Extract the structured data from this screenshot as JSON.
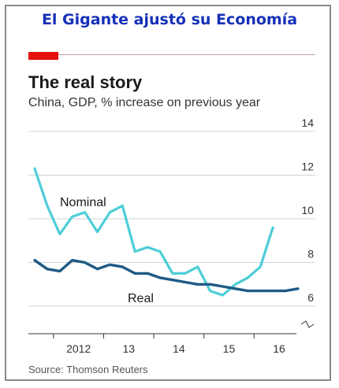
{
  "header": {
    "title": "El Gigante ajustó su Economía"
  },
  "chart_data": {
    "type": "line",
    "title": "The real story",
    "subtitle": "China, GDP, % increase on previous year",
    "source": "Source: Thomson Reuters",
    "xlabel": "",
    "ylabel": "",
    "x_tick_labels": [
      "2012",
      "13",
      "14",
      "15",
      "16"
    ],
    "y_ticks": [
      6,
      8,
      10,
      12,
      14
    ],
    "ylim": [
      5.5,
      14
    ],
    "grid": true,
    "colors": {
      "nominal": "#4ecdd8",
      "real": "#1f5a85",
      "accent": "#e3120b"
    },
    "x": [
      "2011Q3",
      "2011Q4",
      "2012Q1",
      "2012Q2",
      "2012Q3",
      "2012Q4",
      "2013Q1",
      "2013Q2",
      "2013Q3",
      "2013Q4",
      "2014Q1",
      "2014Q2",
      "2014Q3",
      "2014Q4",
      "2015Q1",
      "2015Q2",
      "2015Q3",
      "2015Q4",
      "2016Q1",
      "2016Q2",
      "2016Q3",
      "2016Q4",
      "2017Q1"
    ],
    "series": [
      {
        "name": "Nominal",
        "values": [
          12.3,
          10.6,
          9.3,
          10.1,
          10.3,
          9.4,
          10.3,
          10.6,
          8.5,
          8.7,
          8.5,
          7.5,
          7.5,
          7.8,
          6.7,
          6.5,
          7.0,
          7.3,
          7.8,
          9.6,
          null,
          null,
          null
        ]
      },
      {
        "name": "Real",
        "values": [
          8.1,
          7.7,
          7.6,
          8.1,
          8.0,
          7.7,
          7.9,
          7.8,
          7.5,
          7.5,
          7.3,
          7.2,
          7.1,
          7.0,
          7.0,
          6.9,
          6.8,
          6.7,
          6.7,
          6.7,
          6.7,
          6.8,
          null
        ]
      }
    ]
  }
}
